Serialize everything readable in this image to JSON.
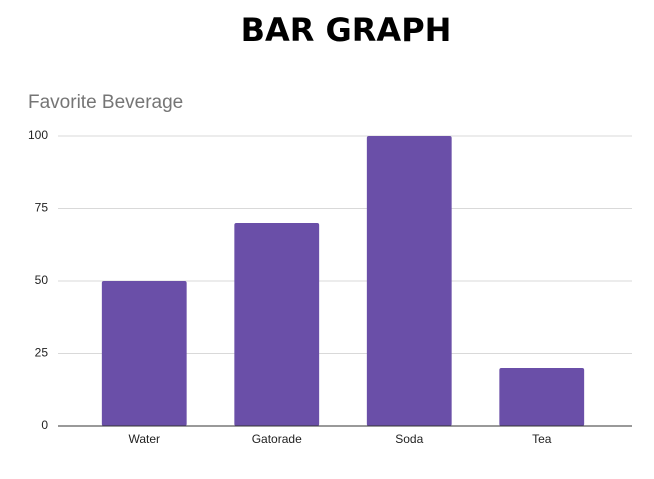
{
  "page_title": "BAR GRAPH",
  "chart_data": {
    "type": "bar",
    "title": "Favorite Beverage",
    "categories": [
      "Water",
      "Gatorade",
      "Soda",
      "Tea"
    ],
    "values": [
      50,
      70,
      100,
      20
    ],
    "color": "#6a4fa8",
    "ylim": [
      0,
      100
    ],
    "yticks": [
      0,
      25,
      50,
      75,
      100
    ],
    "grid": true
  }
}
